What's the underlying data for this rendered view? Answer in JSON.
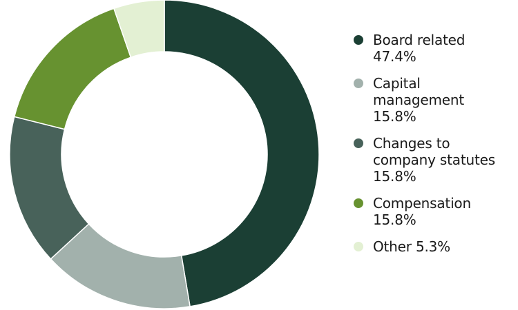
{
  "chart_data": {
    "type": "pie",
    "donut": true,
    "legend_position": "right",
    "slices": [
      {
        "label": "Board related",
        "value": 47.4,
        "value_label": "47.4%",
        "color": "#1b3f34"
      },
      {
        "label": "Capital management",
        "value": 15.8,
        "value_label": "15.8%",
        "color": "#a2b1ac"
      },
      {
        "label": "Changes to company statutes",
        "value": 15.8,
        "value_label": "15.8%",
        "color": "#48625a"
      },
      {
        "label": "Compensation",
        "value": 15.8,
        "value_label": "15.8%",
        "color": "#679230"
      },
      {
        "label": "Other",
        "value": 5.3,
        "value_label": "5.3%",
        "color": "#e3f0d3"
      }
    ]
  }
}
